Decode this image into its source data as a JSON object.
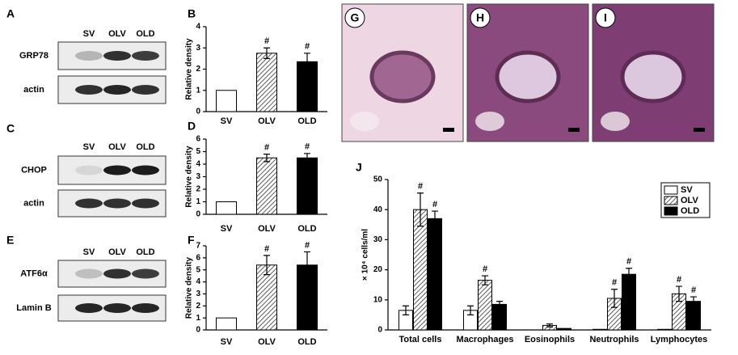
{
  "blots": [
    {
      "panel": "A",
      "lanes": [
        "SV",
        "OLV",
        "OLD"
      ],
      "rows": [
        "GRP78",
        "actin"
      ]
    },
    {
      "panel": "C",
      "lanes": [
        "SV",
        "OLV",
        "OLD"
      ],
      "rows": [
        "CHOP",
        "actin"
      ]
    },
    {
      "panel": "E",
      "lanes": [
        "SV",
        "OLV",
        "OLD"
      ],
      "rows": [
        "ATF6α",
        "Lamin B"
      ]
    }
  ],
  "images": [
    {
      "label": "G"
    },
    {
      "label": "H"
    },
    {
      "label": "I"
    }
  ],
  "chart_data": [
    {
      "type": "bar",
      "panel": "B",
      "ylabel": "Relative density",
      "categories": [
        "SV",
        "OLV",
        "OLD"
      ],
      "values": [
        1,
        2.75,
        2.35
      ],
      "errors": [
        null,
        0.25,
        0.4
      ],
      "markers": [
        null,
        "#",
        "#"
      ],
      "colors": [
        "#ffffff",
        "#ffffff",
        "#000000"
      ],
      "hatched": [
        false,
        true,
        false
      ],
      "ylim": [
        0,
        4
      ],
      "yticks": [
        0,
        1,
        2,
        3,
        4
      ]
    },
    {
      "type": "bar",
      "panel": "D",
      "ylabel": "Relative density",
      "categories": [
        "SV",
        "OLV",
        "OLD"
      ],
      "values": [
        1,
        4.5,
        4.5
      ],
      "errors": [
        null,
        0.3,
        0.35
      ],
      "markers": [
        null,
        "#",
        "#"
      ],
      "colors": [
        "#ffffff",
        "#ffffff",
        "#000000"
      ],
      "hatched": [
        false,
        true,
        false
      ],
      "ylim": [
        0,
        6
      ],
      "yticks": [
        0,
        1,
        2,
        3,
        4,
        5,
        6
      ]
    },
    {
      "type": "bar",
      "panel": "F",
      "ylabel": "Relative density",
      "categories": [
        "SV",
        "OLV",
        "OLD"
      ],
      "values": [
        1,
        5.4,
        5.4
      ],
      "errors": [
        null,
        0.8,
        1.1
      ],
      "markers": [
        null,
        "#",
        "#"
      ],
      "colors": [
        "#ffffff",
        "#ffffff",
        "#000000"
      ],
      "hatched": [
        false,
        true,
        false
      ],
      "ylim": [
        0,
        7
      ],
      "yticks": [
        0,
        1,
        2,
        3,
        4,
        5,
        6,
        7
      ]
    },
    {
      "type": "bar",
      "panel": "J",
      "ylabel": "× 10⁴ cells/ml",
      "categories": [
        "Total cells",
        "Macrophages",
        "Eosinophils",
        "Neutrophils",
        "Lymphocytes"
      ],
      "series": [
        {
          "name": "SV",
          "color": "#ffffff",
          "hatched": false,
          "values": [
            6.5,
            6.5,
            0,
            0.2,
            0.2
          ],
          "errors": [
            1.5,
            1.5,
            null,
            null,
            null
          ],
          "markers": [
            null,
            null,
            null,
            null,
            null
          ]
        },
        {
          "name": "OLV",
          "color": "#ffffff",
          "hatched": true,
          "values": [
            40,
            16.5,
            1.5,
            10.5,
            12
          ],
          "errors": [
            5.5,
            1.5,
            0.5,
            3,
            2.5
          ],
          "markers": [
            "#",
            "#",
            null,
            "#",
            "#"
          ]
        },
        {
          "name": "OLD",
          "color": "#000000",
          "hatched": false,
          "values": [
            37,
            8.5,
            0.5,
            18.5,
            9.5
          ],
          "errors": [
            2.5,
            1,
            null,
            2,
            1.5
          ],
          "markers": [
            "#",
            null,
            null,
            "#",
            "#"
          ]
        }
      ],
      "ylim": [
        0,
        50
      ],
      "yticks": [
        0,
        10,
        20,
        30,
        40,
        50
      ],
      "legend": "top-right"
    }
  ]
}
